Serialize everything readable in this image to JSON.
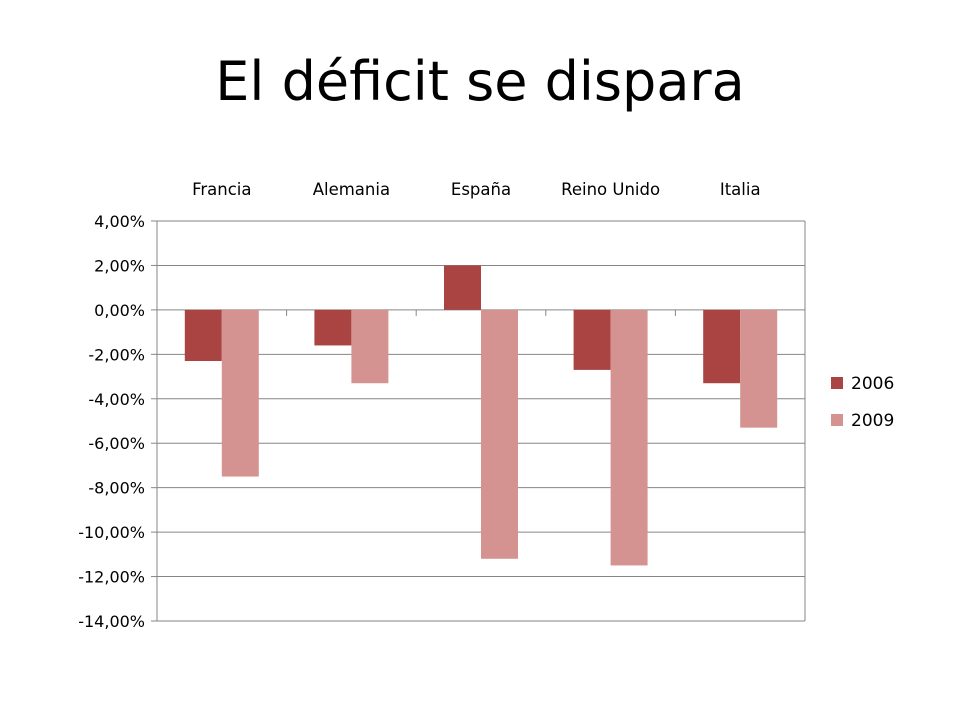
{
  "slide": {
    "title": "El déficit se dispara"
  },
  "chart_data": {
    "type": "bar",
    "categories": [
      "Francia",
      "Alemania",
      "España",
      "Reino Unido",
      "Italia"
    ],
    "series": [
      {
        "name": "2006",
        "values": [
          -2.3,
          -1.6,
          2.0,
          -2.7,
          -3.3
        ],
        "color": "#a94442"
      },
      {
        "name": "2009",
        "values": [
          -7.5,
          -3.3,
          -11.2,
          -11.5,
          -5.3
        ],
        "color": "#d49391"
      }
    ],
    "ylim": [
      -14,
      4
    ],
    "yticks": [
      4,
      2,
      0,
      -2,
      -4,
      -6,
      -8,
      -10,
      -12,
      -14
    ],
    "ytick_labels": [
      "4,00%",
      "2,00%",
      "0,00%",
      "-2,00%",
      "-4,00%",
      "-6,00%",
      "-8,00%",
      "-10,00%",
      "-12,00%",
      "-14,00%"
    ],
    "grid": true,
    "category_labels_position": "top",
    "legend_position": "right",
    "title": "",
    "xlabel": "",
    "ylabel": ""
  }
}
